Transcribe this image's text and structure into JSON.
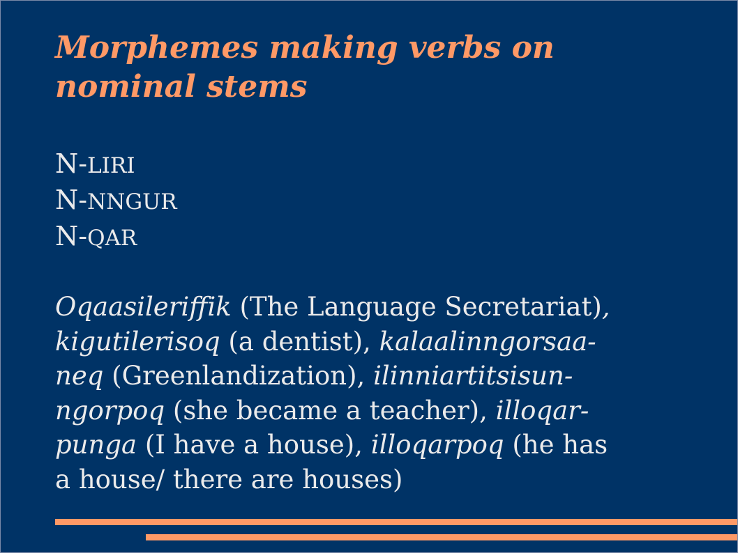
{
  "title": {
    "line1": "Morphemes making verbs on",
    "line2": "nominal stems"
  },
  "morphemes": [
    {
      "prefix": "N-",
      "suffix": "LIRI"
    },
    {
      "prefix": "N-",
      "suffix": "NNGUR"
    },
    {
      "prefix": "N-",
      "suffix": "QAR"
    }
  ],
  "examples": {
    "line1": {
      "word": "Oqaasileriffik",
      "gloss": " (The Language Secretariat)",
      "sep": ","
    },
    "line2": {
      "word": "kigutilerisoq",
      "gloss": " (a dentist)",
      "sep": ", ",
      "word2": "kalaalinngorsaa-"
    },
    "line3": {
      "word": "neq",
      "gloss": " (Greenlandization)",
      "sep": ", ",
      "word2": "ilinniartitsisun-"
    },
    "line4": {
      "word": "ngorpoq",
      "gloss": " (she became a teacher)",
      "sep": ", ",
      "word2": "illoqar-"
    },
    "line5": {
      "word": "punga",
      "gloss": " (I have a house)",
      "sep": ", ",
      "word2": "illoqarpoq",
      "gloss2": " (he has"
    },
    "line6": {
      "text": "a house/ there are houses)"
    }
  },
  "colors": {
    "background": "#003366",
    "title": "#ff9966",
    "text": "#ebebeb",
    "accent_bars": "#ff9966"
  }
}
